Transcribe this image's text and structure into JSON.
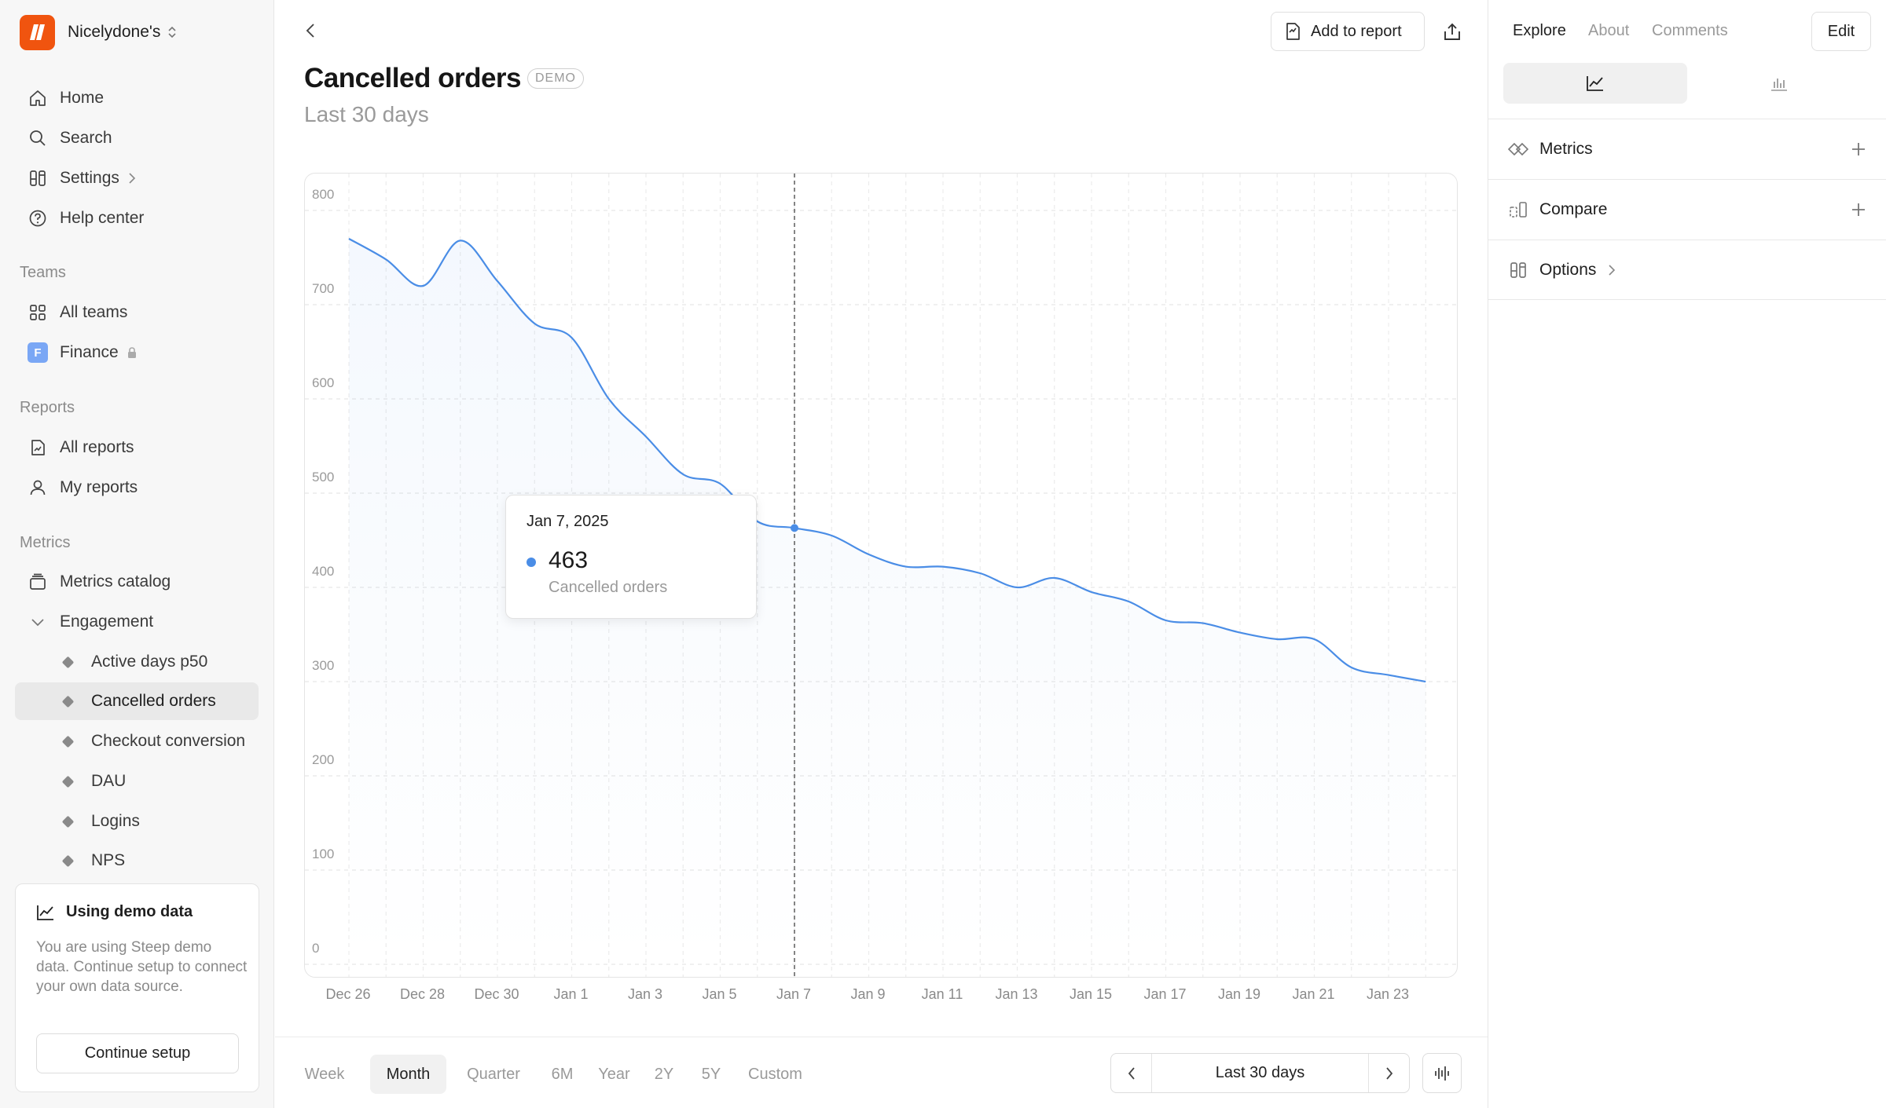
{
  "workspace": {
    "name": "Nicelydone's",
    "logo_color": "#f0540f"
  },
  "nav": {
    "home": "Home",
    "search": "Search",
    "settings": "Settings",
    "help": "Help center"
  },
  "teams": {
    "title": "Teams",
    "all_teams": "All teams",
    "finance": "Finance",
    "finance_badge": "F"
  },
  "reports": {
    "title": "Reports",
    "all_reports": "All reports",
    "my_reports": "My reports"
  },
  "metrics": {
    "title": "Metrics",
    "catalog": "Metrics catalog",
    "engagement": "Engagement",
    "items": [
      "Active days p50",
      "Cancelled orders",
      "Checkout conversion",
      "DAU",
      "Logins",
      "NPS"
    ],
    "active_item": "Cancelled orders"
  },
  "demo_card": {
    "title": "Using demo data",
    "body": "You are using Steep demo data. Continue setup to connect your own data source.",
    "button": "Continue setup"
  },
  "header": {
    "add_to_report": "Add to report",
    "title": "Cancelled orders",
    "badge": "DEMO",
    "subtitle": "Last 30 days"
  },
  "tooltip": {
    "date": "Jan 7, 2025",
    "value": "463",
    "series": "Cancelled orders"
  },
  "chart_data": {
    "type": "line",
    "title": "Cancelled orders",
    "subtitle": "Last 30 days",
    "y_ticks": [
      "0",
      "100",
      "200",
      "300",
      "400",
      "500",
      "600",
      "700",
      "800"
    ],
    "ylim": [
      0,
      800
    ],
    "x_ticks": [
      "Dec 26",
      "Dec 28",
      "Dec 30",
      "Jan 1",
      "Jan 3",
      "Jan 5",
      "Jan 7",
      "Jan 9",
      "Jan 11",
      "Jan 13",
      "Jan 15",
      "Jan 17",
      "Jan 19",
      "Jan 21",
      "Jan 23"
    ],
    "x": [
      "Dec 26",
      "Dec 27",
      "Dec 28",
      "Dec 29",
      "Dec 30",
      "Dec 31",
      "Jan 1",
      "Jan 2",
      "Jan 3",
      "Jan 4",
      "Jan 5",
      "Jan 6",
      "Jan 7",
      "Jan 8",
      "Jan 9",
      "Jan 10",
      "Jan 11",
      "Jan 12",
      "Jan 13",
      "Jan 14",
      "Jan 15",
      "Jan 16",
      "Jan 17",
      "Jan 18",
      "Jan 19",
      "Jan 20",
      "Jan 21",
      "Jan 22",
      "Jan 23",
      "Jan 24"
    ],
    "series": [
      {
        "color": "#4a8de6",
        "values": [
          770,
          748,
          720,
          768,
          725,
          680,
          665,
          600,
          560,
          520,
          510,
          470,
          463,
          455,
          435,
          422,
          422,
          415,
          400,
          410,
          395,
          385,
          365,
          362,
          352,
          345,
          345,
          315,
          307,
          300
        ]
      }
    ],
    "highlight": {
      "x": "Jan 7",
      "value": 463
    },
    "grid": true
  },
  "ranges": {
    "items": [
      "Week",
      "Month",
      "Quarter",
      "6M",
      "Year",
      "2Y",
      "5Y",
      "Custom"
    ],
    "active": "Month"
  },
  "period": {
    "label": "Last 30 days"
  },
  "right_panel": {
    "tabs": [
      "Explore",
      "About",
      "Comments"
    ],
    "active_tab": "Explore",
    "edit": "Edit",
    "rows": {
      "metrics": "Metrics",
      "compare": "Compare",
      "options": "Options"
    }
  }
}
